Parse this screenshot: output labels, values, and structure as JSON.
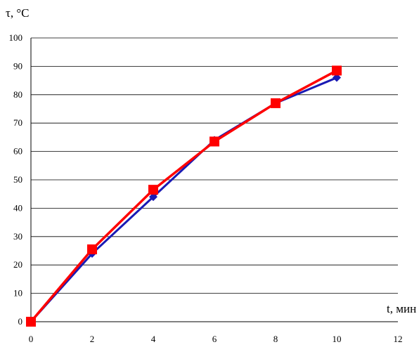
{
  "chart_data": {
    "type": "line",
    "title": "",
    "xlabel": "t, мин",
    "ylabel": "τ, °C",
    "xlim": [
      0,
      12
    ],
    "ylim": [
      0,
      100
    ],
    "x_ticks": [
      "0",
      "2",
      "4",
      "6",
      "8",
      "10",
      "12"
    ],
    "y_ticks": [
      "0",
      "10",
      "20",
      "30",
      "40",
      "50",
      "60",
      "70",
      "80",
      "90",
      "100"
    ],
    "grid": "horizontal",
    "legend": "none",
    "series": [
      {
        "color": "#1a1ab4",
        "marker": "diamond",
        "x": [
          0,
          2,
          4,
          6,
          8,
          10
        ],
        "y": [
          0,
          24,
          44,
          64,
          77,
          86
        ]
      },
      {
        "color": "#ff0000",
        "marker": "square",
        "x": [
          0,
          2,
          4,
          6,
          8,
          10
        ],
        "y": [
          0,
          25.5,
          46.5,
          63.5,
          77,
          88.5
        ]
      }
    ]
  }
}
